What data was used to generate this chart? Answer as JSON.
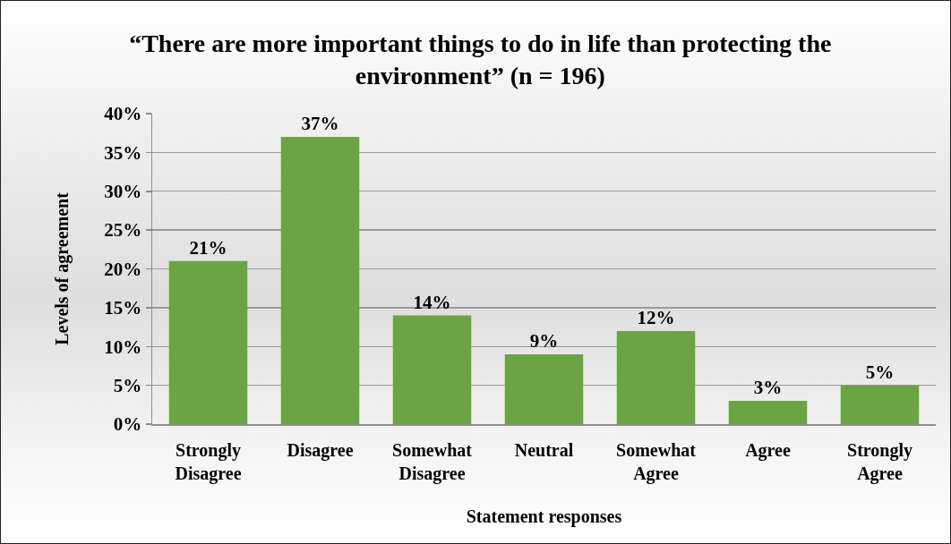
{
  "chart_data": {
    "type": "bar",
    "title": "“There are more important things to do in life than protecting the environment” (n = 196)",
    "xlabel": "Statement responses",
    "ylabel": "Levels of agreement",
    "categories": [
      "Strongly Disagree",
      "Disagree",
      "Somewhat Disagree",
      "Neutral",
      "Somewhat Agree",
      "Agree",
      "Strongly Agree"
    ],
    "values": [
      21,
      37,
      14,
      9,
      12,
      3,
      5
    ],
    "value_labels": [
      "21%",
      "37%",
      "14%",
      "9%",
      "12%",
      "3%",
      "5%"
    ],
    "color": "#6aa443",
    "ylim": [
      0,
      40
    ],
    "yticks": [
      {
        "value": 0,
        "label": "0%"
      },
      {
        "value": 5,
        "label": "5%"
      },
      {
        "value": 10,
        "label": "10%"
      },
      {
        "value": 15,
        "label": "15%"
      },
      {
        "value": 20,
        "label": "20%"
      },
      {
        "value": 25,
        "label": "25%"
      },
      {
        "value": 30,
        "label": "30%"
      },
      {
        "value": 35,
        "label": "35%"
      },
      {
        "value": 40,
        "label": "40%"
      }
    ],
    "grid": "y"
  }
}
